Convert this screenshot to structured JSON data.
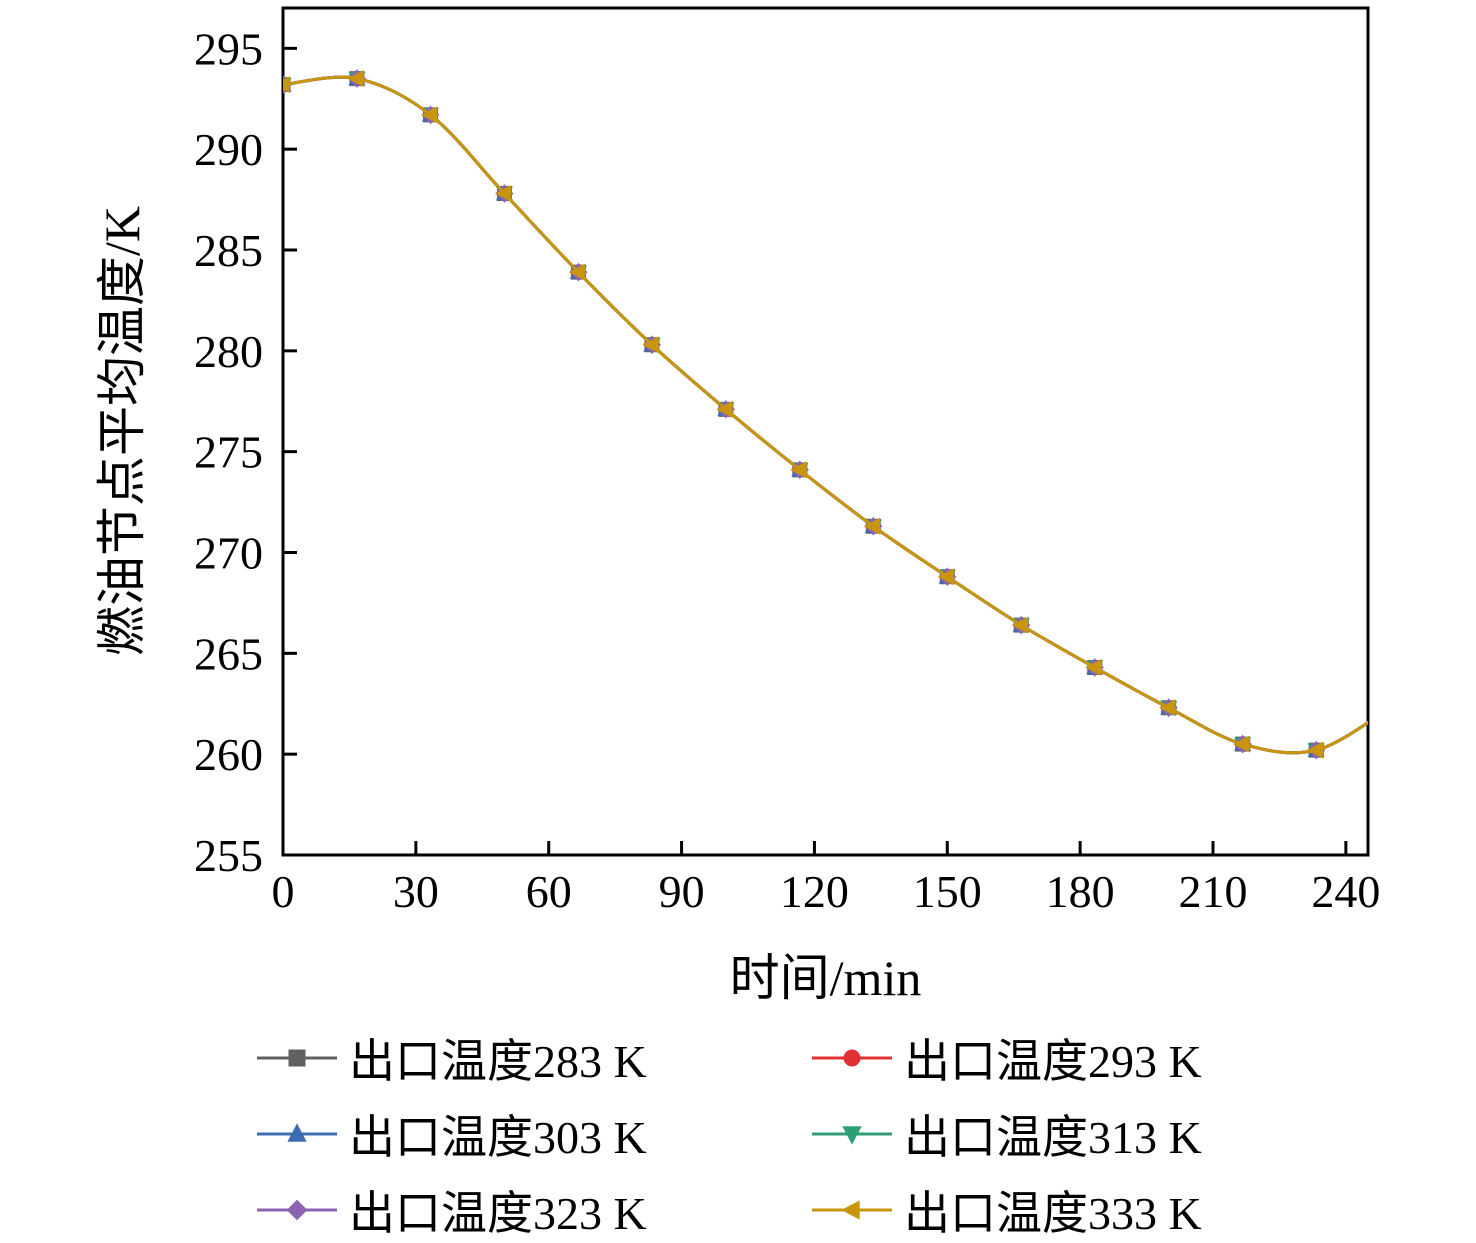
{
  "chart_data": {
    "type": "line",
    "title": "",
    "xlabel": "时间/min",
    "ylabel": "燃油节点平均温度/K",
    "xlim": [
      0,
      245
    ],
    "ylim": [
      255,
      297
    ],
    "xticks": [
      0,
      30,
      60,
      90,
      120,
      150,
      180,
      210,
      240
    ],
    "yticks": [
      255,
      260,
      265,
      270,
      275,
      280,
      285,
      290,
      295
    ],
    "grid": false,
    "legend_position": "bottom",
    "x": [
      0,
      16.7,
      33.3,
      50,
      66.7,
      83.3,
      100,
      116.7,
      133.3,
      150,
      166.7,
      183.3,
      200,
      216.7,
      233.3,
      250
    ],
    "series": [
      {
        "name": "出口温度283 K",
        "color": "#606060",
        "marker": "square",
        "values": [
          293.2,
          293.5,
          291.7,
          287.8,
          283.9,
          280.3,
          277.1,
          274.1,
          271.3,
          268.8,
          266.4,
          264.3,
          262.3,
          260.5,
          260.2,
          262.3
        ]
      },
      {
        "name": "出口温度293 K",
        "color": "#e03135",
        "marker": "circle",
        "values": [
          293.2,
          293.5,
          291.7,
          287.8,
          283.9,
          280.3,
          277.1,
          274.1,
          271.3,
          268.8,
          266.4,
          264.3,
          262.3,
          260.5,
          260.2,
          262.3
        ]
      },
      {
        "name": "出口温度303 K",
        "color": "#3c6db0",
        "marker": "triangle-up",
        "values": [
          293.2,
          293.5,
          291.7,
          287.8,
          283.9,
          280.3,
          277.1,
          274.1,
          271.3,
          268.8,
          266.4,
          264.3,
          262.3,
          260.5,
          260.2,
          262.3
        ]
      },
      {
        "name": "出口温度313 K",
        "color": "#2e9e74",
        "marker": "triangle-down",
        "values": [
          293.2,
          293.5,
          291.7,
          287.8,
          283.9,
          280.3,
          277.1,
          274.1,
          271.3,
          268.8,
          266.4,
          264.3,
          262.3,
          260.5,
          260.2,
          262.3
        ]
      },
      {
        "name": "出口温度323 K",
        "color": "#8a63b2",
        "marker": "diamond",
        "values": [
          293.2,
          293.5,
          291.7,
          287.8,
          283.9,
          280.3,
          277.1,
          274.1,
          271.3,
          268.8,
          266.4,
          264.3,
          262.3,
          260.5,
          260.2,
          262.3
        ]
      },
      {
        "name": "出口温度333 K",
        "color": "#c8960c",
        "marker": "triangle-left",
        "values": [
          293.2,
          293.5,
          291.7,
          287.8,
          283.9,
          280.3,
          277.1,
          274.1,
          271.3,
          268.8,
          266.4,
          264.3,
          262.3,
          260.5,
          260.2,
          262.3
        ]
      }
    ]
  }
}
